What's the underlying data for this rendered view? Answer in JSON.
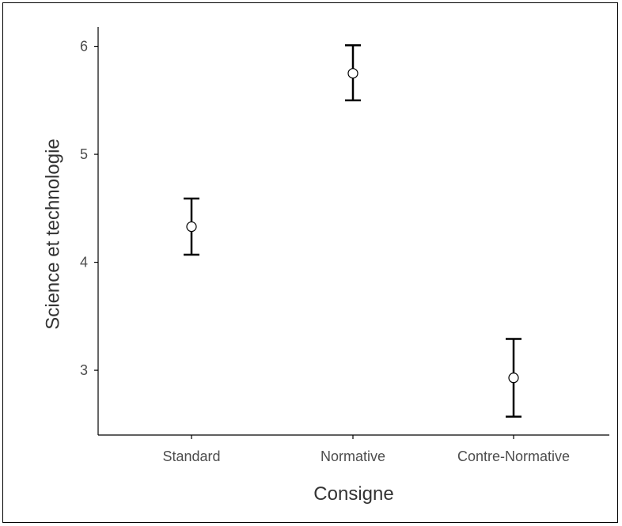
{
  "chart_data": {
    "type": "scatter",
    "title": "",
    "xlabel": "Consigne",
    "ylabel": "Science et technologie",
    "categories": [
      "Standard",
      "Normative",
      "Contre-Normative"
    ],
    "means": [
      4.33,
      5.75,
      2.93
    ],
    "ci_lower": [
      4.07,
      5.5,
      2.57
    ],
    "ci_upper": [
      4.59,
      6.01,
      3.29
    ],
    "ylim": [
      2.4,
      6.18
    ],
    "yticks": [
      "3",
      "4",
      "5",
      "6"
    ],
    "grid": false,
    "legend": "none",
    "colors": {
      "axis": "#000000",
      "errorbar": "#000000",
      "point_fill": "#ffffff",
      "point_stroke": "#000000",
      "tick_text": "#4d4d4d",
      "title_text": "#333333"
    }
  }
}
